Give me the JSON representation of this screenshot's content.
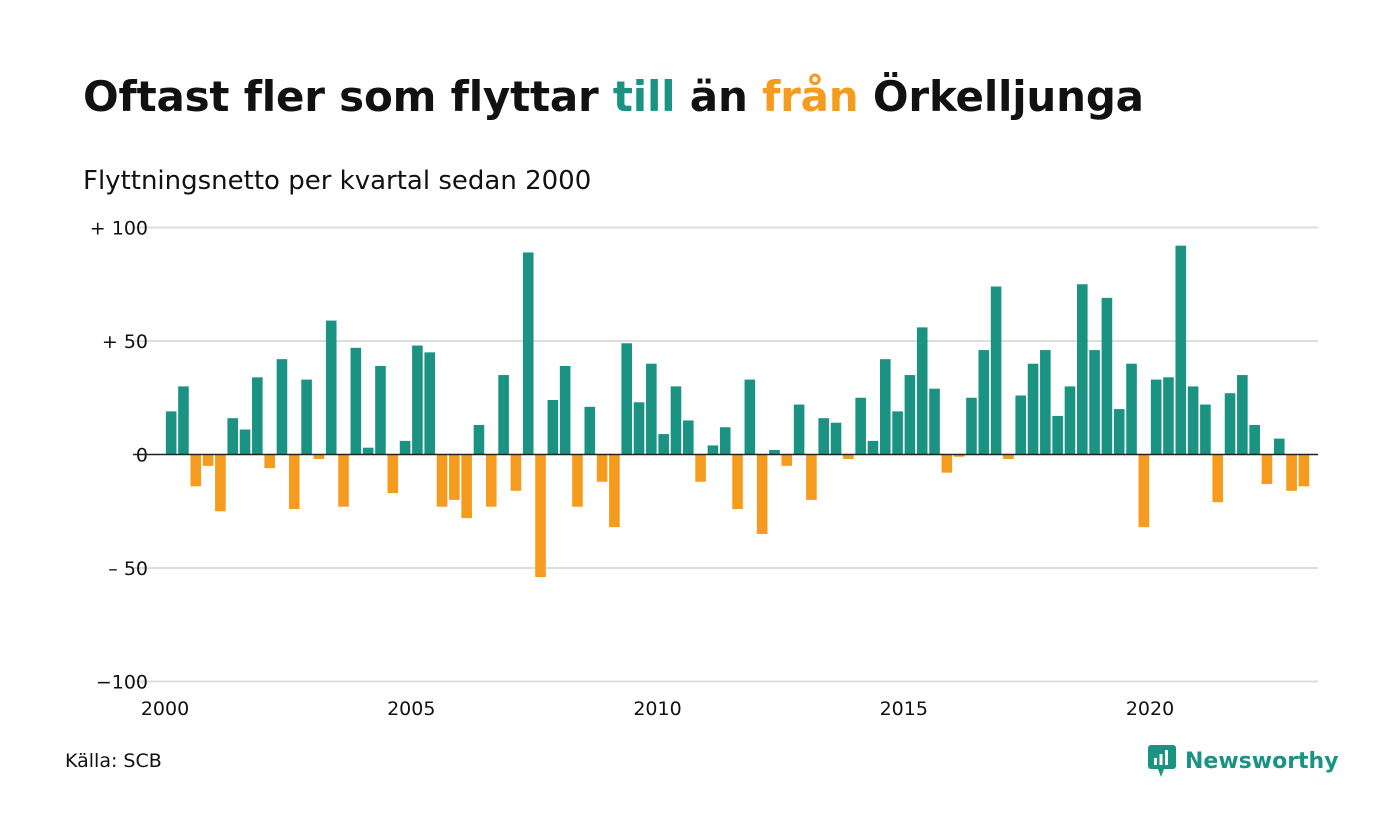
{
  "title": {
    "part1": "Oftast fler som flyttar ",
    "till": "till",
    "part2": " än ",
    "fran": "från",
    "part3": " Örkelljunga"
  },
  "subtitle": "Flyttningsnetto per kvartal sedan 2000",
  "source": "Källa: SCB",
  "brand": "Newsworthy",
  "colors": {
    "positive": "#1a9383",
    "negative": "#f59c1e",
    "grid": "#dddddd",
    "zero_line": "#222222"
  },
  "chart_data": {
    "type": "bar",
    "title": "Oftast fler som flyttar till än från Örkelljunga",
    "subtitle": "Flyttningsnetto per kvartal sedan 2000",
    "x_start": "2000 Q1",
    "x_ticks": [
      {
        "value": 2000,
        "label": "2000"
      },
      {
        "value": 2005,
        "label": "2005"
      },
      {
        "value": 2010,
        "label": "2010"
      },
      {
        "value": 2015,
        "label": "2015"
      },
      {
        "value": 2020,
        "label": "2020"
      }
    ],
    "y_ticks": [
      {
        "value": 100,
        "label": "+ 100"
      },
      {
        "value": 50,
        "label": "+  50"
      },
      {
        "value": 0,
        "label": "0"
      },
      {
        "value": -50,
        "label": "– 50"
      },
      {
        "value": -100,
        "label": "−100"
      }
    ],
    "ylim": [
      -100,
      100
    ],
    "grid": true,
    "values": [
      19,
      30,
      -14,
      -5,
      -25,
      16,
      11,
      34,
      -6,
      42,
      -24,
      33,
      -2,
      59,
      -23,
      47,
      3,
      39,
      -17,
      6,
      48,
      45,
      -23,
      -20,
      -28,
      13,
      -23,
      35,
      -16,
      89,
      -54,
      24,
      39,
      -23,
      21,
      -12,
      -32,
      49,
      23,
      40,
      9,
      30,
      15,
      -12,
      4,
      12,
      -24,
      33,
      -35,
      2,
      -5,
      22,
      -20,
      16,
      14,
      -2,
      25,
      6,
      42,
      19,
      35,
      56,
      29,
      -8,
      -1,
      25,
      46,
      74,
      -2,
      26,
      40,
      46,
      17,
      30,
      75,
      46,
      69,
      20,
      40,
      -32,
      33,
      34,
      92,
      30,
      22,
      -21,
      27,
      35,
      13,
      -13,
      7,
      -16,
      -14
    ]
  }
}
